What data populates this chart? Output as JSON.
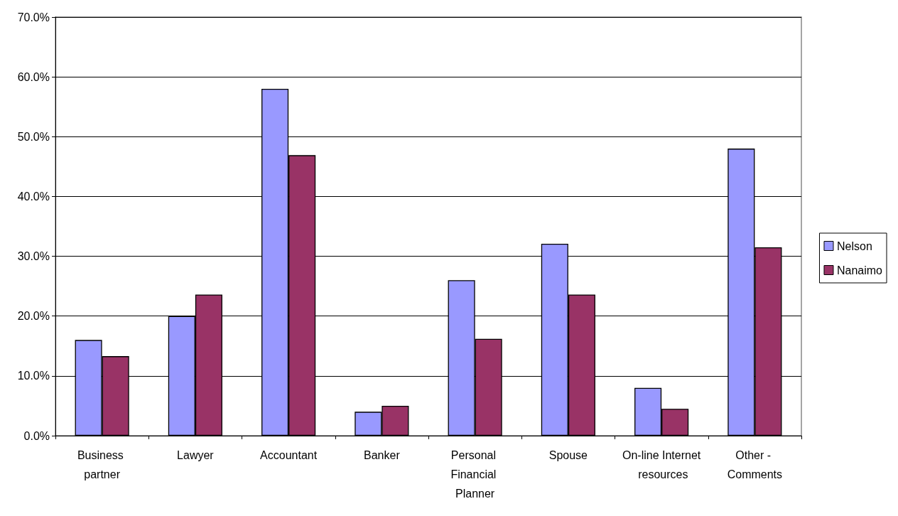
{
  "chart_data": {
    "type": "bar",
    "categories": [
      "Business partner",
      "Lawyer",
      "Accountant",
      "Banker",
      "Personal Financial Planner",
      "Spouse",
      "On-line Internet resources",
      "Other - Comments"
    ],
    "series": [
      {
        "name": "Nelson",
        "color": "#9999ff",
        "values": [
          16.0,
          20.0,
          58.0,
          4.0,
          26.0,
          32.1,
          8.0,
          48.0
        ]
      },
      {
        "name": "Nanaimo",
        "color": "#993366",
        "values": [
          13.3,
          23.6,
          46.9,
          5.0,
          16.2,
          23.6,
          4.5,
          31.5
        ]
      }
    ],
    "ylim": [
      0,
      70
    ],
    "yticks": [
      {
        "value": 0,
        "label": "0.0%"
      },
      {
        "value": 10,
        "label": "10.0%"
      },
      {
        "value": 20,
        "label": "20.0%"
      },
      {
        "value": 30,
        "label": "30.0%"
      },
      {
        "value": 40,
        "label": "40.0%"
      },
      {
        "value": 50,
        "label": "50.0%"
      },
      {
        "value": 60,
        "label": "60.0%"
      },
      {
        "value": 70,
        "label": "70.0%"
      }
    ],
    "grid": "y",
    "legend": "right"
  }
}
